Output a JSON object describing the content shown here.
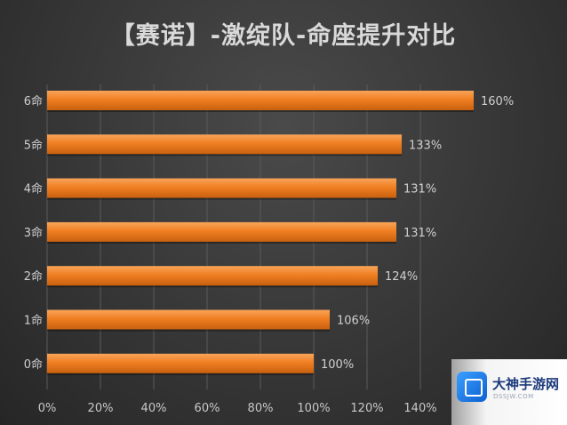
{
  "chart_data": {
    "type": "bar",
    "orientation": "horizontal",
    "title": "【赛诺】-激绽队-命座提升对比",
    "categories": [
      "0命",
      "1命",
      "2命",
      "3命",
      "4命",
      "5命",
      "6命"
    ],
    "values": [
      100,
      106,
      124,
      131,
      131,
      133,
      160
    ],
    "data_labels": [
      "100%",
      "106%",
      "124%",
      "131%",
      "131%",
      "133%",
      "160%"
    ],
    "x_ticks": [
      "0%",
      "20%",
      "40%",
      "60%",
      "80%",
      "100%",
      "120%",
      "140%"
    ],
    "xlim": [
      0,
      160
    ],
    "grid": true,
    "bar_color": "#f07f22"
  },
  "watermark": {
    "text": "大神手游网",
    "subtext": "DSSJW.COM",
    "icon": "cube-icon"
  }
}
